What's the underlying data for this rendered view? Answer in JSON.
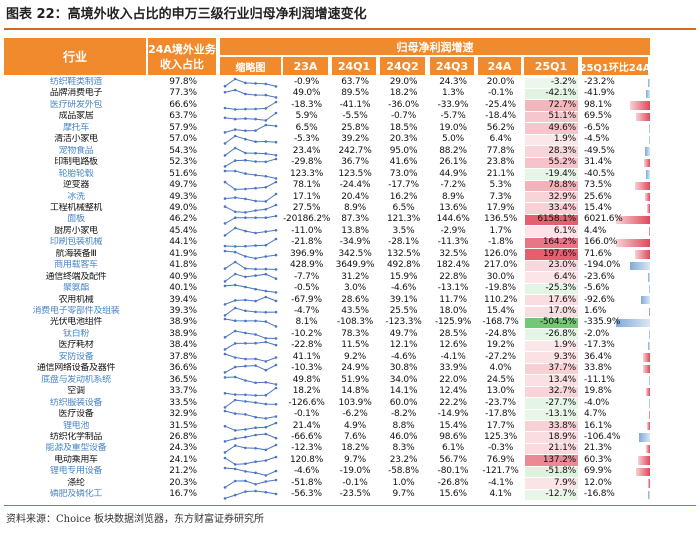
{
  "title": "图表 22：高境外收入占比的申万三级行业归母净利润增速变化",
  "source": "资料来源：Choice 板块数据浏览器，东方财富证券研究所",
  "colors": {
    "header": "#f08a2c",
    "odd_text": "#4a86c8",
    "even_text": "#111111",
    "positive": "#e0485a",
    "negative": "#5fbf5f",
    "spark": "#4a74c4"
  },
  "chart_data": {
    "type": "table",
    "headers": {
      "industry": "行业",
      "overseas_share": "24A境外业务收入占比",
      "group": "归母净利润增速",
      "sparkline": "缩略图",
      "periods": [
        "23A",
        "24Q1",
        "24Q2",
        "24Q3",
        "24A",
        "25Q1",
        "25Q1环比24A"
      ]
    },
    "rows": [
      {
        "industry": "纺织鞋类制造",
        "share": "97.8%",
        "v": [
          -0.9,
          63.7,
          29.0,
          24.3,
          20.0,
          -3.2
        ],
        "chg": -23.2
      },
      {
        "industry": "品牌消费电子",
        "share": "77.3%",
        "v": [
          49.0,
          89.5,
          18.2,
          1.3,
          -0.1,
          -42.1
        ],
        "chg": -41.9
      },
      {
        "industry": "医疗研发外包",
        "share": "66.6%",
        "v": [
          -18.3,
          -41.1,
          -36.0,
          -33.9,
          -25.4,
          72.7
        ],
        "chg": 98.1
      },
      {
        "industry": "成品家居",
        "share": "63.7%",
        "v": [
          5.9,
          -5.5,
          -0.7,
          -5.7,
          -18.4,
          51.1
        ],
        "chg": 69.5
      },
      {
        "industry": "摩托车",
        "share": "57.9%",
        "v": [
          6.5,
          25.8,
          18.5,
          19.0,
          56.2,
          49.6
        ],
        "chg": -6.5
      },
      {
        "industry": "清洁小家电",
        "share": "57.0%",
        "v": [
          -5.3,
          39.2,
          20.3,
          5.0,
          6.4,
          1.9
        ],
        "chg": -4.5
      },
      {
        "industry": "宠物食品",
        "share": "54.3%",
        "v": [
          23.4,
          242.7,
          95.0,
          88.2,
          77.8,
          28.3
        ],
        "chg": -49.5
      },
      {
        "industry": "印制电路板",
        "share": "52.3%",
        "v": [
          -29.8,
          36.7,
          41.6,
          26.1,
          23.8,
          55.2
        ],
        "chg": 31.4
      },
      {
        "industry": "轮胎轮毂",
        "share": "51.6%",
        "v": [
          123.3,
          123.5,
          73.0,
          44.9,
          21.1,
          -19.4
        ],
        "chg": -40.5
      },
      {
        "industry": "逆变器",
        "share": "49.7%",
        "v": [
          78.1,
          -24.4,
          -17.7,
          -7.2,
          5.3,
          78.8
        ],
        "chg": 73.5
      },
      {
        "industry": "冰洗",
        "share": "49.3%",
        "v": [
          17.1,
          20.4,
          16.2,
          8.9,
          7.3,
          32.9
        ],
        "chg": 25.6
      },
      {
        "industry": "工程机械整机",
        "share": "49.0%",
        "v": [
          27.5,
          8.9,
          6.5,
          13.6,
          17.9,
          33.4
        ],
        "chg": 15.4
      },
      {
        "industry": "面板",
        "share": "46.2%",
        "v": [
          -20186.2,
          87.3,
          121.3,
          144.6,
          136.5,
          6158.1
        ],
        "chg": 6021.6
      },
      {
        "industry": "厨房小家电",
        "share": "45.4%",
        "v": [
          -11.0,
          13.8,
          3.5,
          -2.9,
          1.7,
          6.1
        ],
        "chg": 4.4
      },
      {
        "industry": "印刷包装机械",
        "share": "44.1%",
        "v": [
          -21.8,
          -34.9,
          -28.1,
          -11.3,
          -1.8,
          164.2
        ],
        "chg": 166.0
      },
      {
        "industry": "航海装备Ⅲ",
        "share": "41.9%",
        "v": [
          396.9,
          342.5,
          132.5,
          32.5,
          126.0,
          197.6
        ],
        "chg": 71.6
      },
      {
        "industry": "商用载客车",
        "share": "41.8%",
        "v": [
          428.9,
          3649.9,
          492.8,
          182.4,
          217.0,
          23.0
        ],
        "chg": -194.0
      },
      {
        "industry": "通信终端及配件",
        "share": "40.9%",
        "v": [
          -7.7,
          31.2,
          15.9,
          22.8,
          30.0,
          6.4
        ],
        "chg": -23.6
      },
      {
        "industry": "聚氨酯",
        "share": "40.1%",
        "v": [
          -0.5,
          3.0,
          -4.6,
          -13.1,
          -19.8,
          -25.3
        ],
        "chg": -5.6
      },
      {
        "industry": "农用机械",
        "share": "39.4%",
        "v": [
          -67.9,
          28.6,
          39.1,
          11.7,
          110.2,
          17.6
        ],
        "chg": -92.6
      },
      {
        "industry": "消费电子零部件及组装",
        "share": "39.3%",
        "v": [
          -4.7,
          43.5,
          25.5,
          18.0,
          15.4,
          17.0
        ],
        "chg": 1.6
      },
      {
        "industry": "光伏电池组件",
        "share": "38.9%",
        "v": [
          8.1,
          -108.3,
          -123.3,
          -125.9,
          -168.7,
          -504.5
        ],
        "chg": -335.9
      },
      {
        "industry": "钛白粉",
        "share": "38.9%",
        "v": [
          -10.2,
          78.3,
          49.7,
          28.5,
          -24.8,
          -26.8
        ],
        "chg": -2.0
      },
      {
        "industry": "医疗耗材",
        "share": "38.4%",
        "v": [
          -22.8,
          11.5,
          12.1,
          12.6,
          19.2,
          1.9
        ],
        "chg": -17.3
      },
      {
        "industry": "安防设备",
        "share": "37.8%",
        "v": [
          41.1,
          9.2,
          -4.6,
          -4.1,
          -27.2,
          9.3
        ],
        "chg": 36.4
      },
      {
        "industry": "通信网络设备及器件",
        "share": "36.6%",
        "v": [
          -10.3,
          24.9,
          30.8,
          33.9,
          4.0,
          37.7
        ],
        "chg": 33.8
      },
      {
        "industry": "底盘与发动机系统",
        "share": "36.5%",
        "v": [
          49.8,
          51.9,
          34.0,
          22.0,
          24.5,
          13.4
        ],
        "chg": -11.1
      },
      {
        "industry": "空调",
        "share": "33.7%",
        "v": [
          18.2,
          14.8,
          14.1,
          12.4,
          13.0,
          32.7
        ],
        "chg": 19.8
      },
      {
        "industry": "纺织服装设备",
        "share": "33.5%",
        "v": [
          -126.6,
          103.9,
          60.0,
          22.2,
          -23.7,
          -27.7
        ],
        "chg": -4.0
      },
      {
        "industry": "医疗设备",
        "share": "32.9%",
        "v": [
          -0.1,
          -6.2,
          -8.2,
          -14.9,
          -17.8,
          -13.1
        ],
        "chg": 4.7
      },
      {
        "industry": "锂电池",
        "share": "31.5%",
        "v": [
          21.4,
          4.9,
          8.8,
          15.4,
          17.7,
          33.8
        ],
        "chg": 16.1
      },
      {
        "industry": "纺织化学制品",
        "share": "26.8%",
        "v": [
          -66.6,
          7.6,
          46.0,
          98.6,
          125.3,
          18.9
        ],
        "chg": -106.4
      },
      {
        "industry": "能源及重型设备",
        "share": "24.3%",
        "v": [
          -12.3,
          18.2,
          8.3,
          6.1,
          -0.3,
          21.1
        ],
        "chg": 21.3
      },
      {
        "industry": "电动乘用车",
        "share": "24.1%",
        "v": [
          120.8,
          9.7,
          23.2,
          56.7,
          76.9,
          137.2
        ],
        "chg": 60.3
      },
      {
        "industry": "锂电专用设备",
        "share": "21.2%",
        "v": [
          -4.6,
          -19.0,
          -58.8,
          -80.1,
          -121.7,
          -51.8
        ],
        "chg": 69.9
      },
      {
        "industry": "涤纶",
        "share": "20.3%",
        "v": [
          -51.8,
          -0.1,
          1.0,
          -26.8,
          -4.1,
          7.9
        ],
        "chg": 12.0
      },
      {
        "industry": "磷肥及磷化工",
        "share": "16.7%",
        "v": [
          -56.3,
          -23.5,
          9.7,
          15.6,
          4.1,
          -12.7
        ],
        "chg": -16.8
      }
    ]
  }
}
